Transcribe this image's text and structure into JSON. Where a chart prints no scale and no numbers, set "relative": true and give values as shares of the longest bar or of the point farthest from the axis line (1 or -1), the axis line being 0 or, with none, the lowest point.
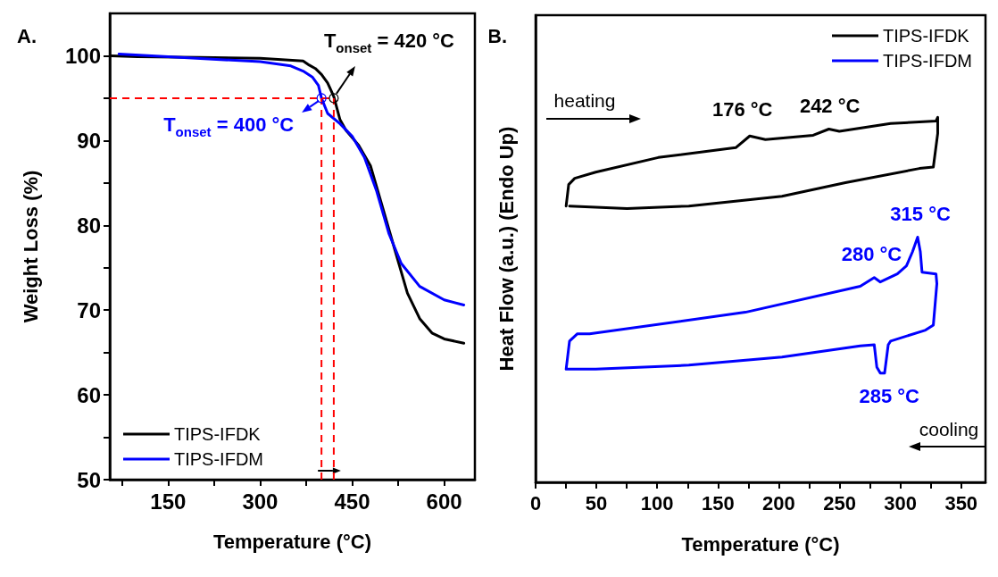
{
  "chart_data": [
    {
      "type": "line",
      "xlabel": "Temperature (°C)",
      "ylabel": "Weight Loss (%)",
      "xlim": [
        55,
        650
      ],
      "xticks": [
        {
          "value": 75,
          "label": null
        },
        150,
        {
          "value": 225,
          "label": null
        },
        300,
        {
          "value": 375,
          "label": null
        },
        450,
        {
          "value": 525,
          "label": null
        },
        600
      ],
      "ylim": [
        50,
        105
      ],
      "yticks": [
        50,
        {
          "value": 55,
          "label": null
        },
        60,
        {
          "value": 65,
          "label": null
        },
        70,
        {
          "value": 75,
          "label": null
        },
        80,
        {
          "value": 85,
          "label": null
        },
        90,
        {
          "value": 95,
          "label": null
        },
        100
      ],
      "legend": "bottom left",
      "series": [
        {
          "name": "TIPS-IFDK",
          "color": "#000000",
          "x": [
            57,
            100,
            200,
            300,
            370,
            380,
            390,
            400,
            410,
            415,
            420,
            430,
            440,
            460,
            480,
            500,
            520,
            540,
            560,
            580,
            600,
            632
          ],
          "values": [
            100,
            99.9,
            99.8,
            99.7,
            99.4,
            98.9,
            98.5,
            97.8,
            96.8,
            96,
            95.2,
            92.5,
            91.2,
            89.5,
            87,
            82,
            77,
            72,
            69,
            67.3,
            66.6,
            66.1
          ]
        },
        {
          "name": "TIPS-IFDM",
          "color": "#0000ff",
          "x": [
            70,
            150,
            300,
            350,
            370,
            385,
            395,
            400,
            410,
            430,
            450,
            470,
            490,
            510,
            530,
            560,
            600,
            632
          ],
          "values": [
            100.2,
            99.9,
            99.3,
            98.8,
            98.2,
            97.5,
            96.5,
            95,
            93.2,
            92,
            90.5,
            88,
            84,
            79,
            75.5,
            72.8,
            71.2,
            70.6
          ]
        }
      ],
      "ref_lines": [
        {
          "axis": "y",
          "value": 95,
          "color": "#ff0000",
          "line_style": "dashed"
        },
        {
          "axis": "x",
          "value": 400,
          "color": "#ff0000",
          "line_style": "dashed"
        },
        {
          "axis": "x",
          "value": 420,
          "color": "#ff0000",
          "line_style": "dashed"
        }
      ],
      "annotations": [
        "A.",
        {
          "text": "T$_{onset}$ = 420 °C",
          "x": 420,
          "y": 95
        },
        {
          "text": "T$_{onset}$ = 400 °C",
          "x": 400,
          "y": 95
        }
      ]
    },
    {
      "type": "line",
      "relative": true,
      "xlabel": "Temperature (°C)",
      "ylabel": "Heat Flow (a.u.) (Endo Up)",
      "xlim": [
        0,
        370
      ],
      "xticks": [
        0,
        {
          "value": 25,
          "label": null
        },
        50,
        {
          "value": 75,
          "label": null
        },
        100,
        {
          "value": 125,
          "label": null
        },
        150,
        {
          "value": 175,
          "label": null
        },
        200,
        {
          "value": 225,
          "label": null
        },
        250,
        {
          "value": 275,
          "label": null
        },
        300,
        {
          "value": 325,
          "label": null
        },
        350
      ],
      "legend": "top right",
      "series": [
        {
          "name": "TIPS-IFDK",
          "color": "#000000",
          "x": [
            25.1,
            27.2,
            32.2,
            49.4,
            100.9,
            164.6,
            176.1,
            189,
            228.3,
            241.2,
            249.8,
            292,
            329.3,
            330.7,
            330.7,
            327.1,
            315.7,
            254.8,
            202.6,
            126,
            75.2,
            27.9
          ],
          "values": [
            0.757,
            0.816,
            0.833,
            0.85,
            0.89,
            0.917,
            0.949,
            0.939,
            0.951,
            0.968,
            0.962,
            0.983,
            0.99,
            1,
            0.956,
            0.864,
            0.86,
            0.821,
            0.784,
            0.757,
            0.75,
            0.757
          ]
        },
        {
          "name": "TIPS-IFDM",
          "color": "#0000ff",
          "x": [
            25.1,
            27.9,
            34.4,
            44.4,
            172.5,
            267,
            278.5,
            283.5,
            297.5,
            305,
            310,
            314.2,
            316.4,
            317.8,
            329.3,
            330,
            327.1,
            320.7,
            292,
            290,
            287,
            283.5,
            280.6,
            278.5,
            267,
            202.6,
            126,
            49.4,
            26.5
          ],
          "values": [
            0.31,
            0.387,
            0.407,
            0.407,
            0.466,
            0.537,
            0.561,
            0.549,
            0.571,
            0.593,
            0.632,
            0.672,
            0.632,
            0.576,
            0.571,
            0.544,
            0.431,
            0.417,
            0.387,
            0.377,
            0.299,
            0.299,
            0.316,
            0.377,
            0.374,
            0.343,
            0.321,
            0.31,
            0.31
          ]
        }
      ],
      "annotations": [
        "B.",
        "heating",
        "cooling",
        {
          "text": "176 °C",
          "x": 176,
          "y": 0.949
        },
        {
          "text": "242 °C",
          "x": 242,
          "y": 0.968
        },
        {
          "text": "280 °C",
          "x": 280,
          "y": 0.561
        },
        {
          "text": "315 °C",
          "x": 315,
          "y": 0.672
        },
        {
          "text": "285 °C",
          "x": 285,
          "y": 0.299
        }
      ]
    }
  ]
}
